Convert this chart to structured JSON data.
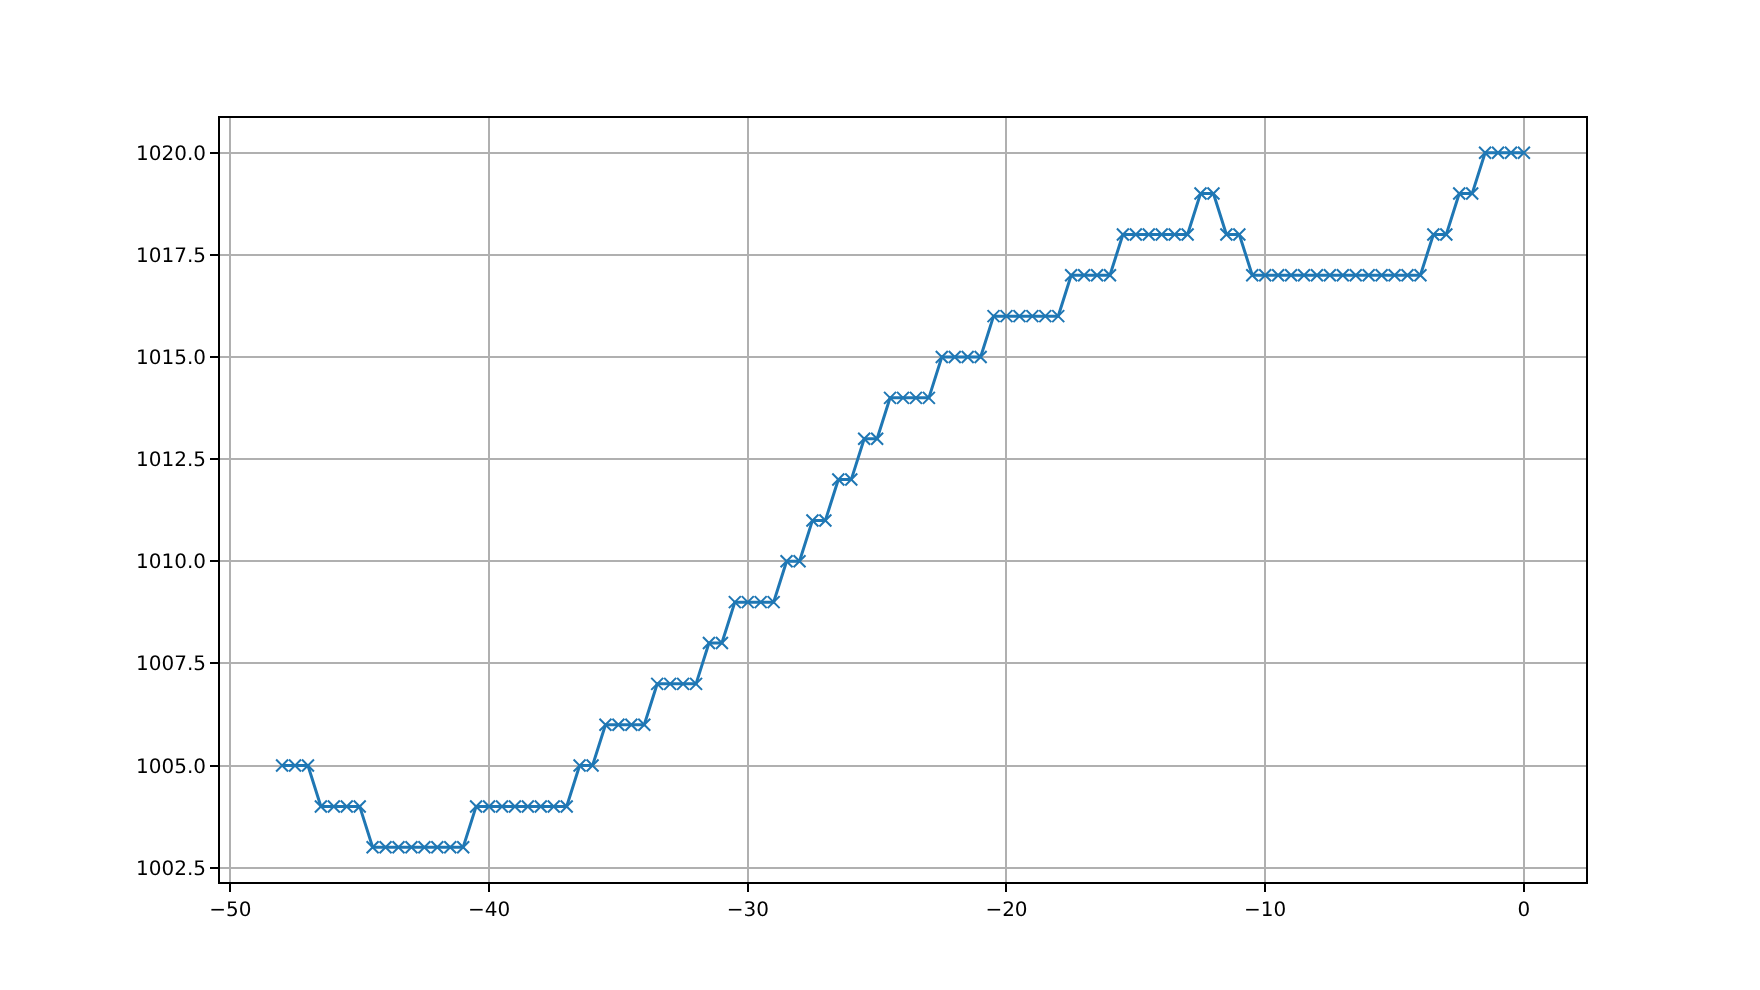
{
  "chart_data": {
    "type": "line",
    "marker": "cross",
    "line_style": "solid",
    "grid": true,
    "x": [
      -48,
      -47.5,
      -47,
      -46.5,
      -46,
      -45.5,
      -45,
      -44.5,
      -44,
      -43.5,
      -43,
      -42.5,
      -42,
      -41.5,
      -41,
      -40.5,
      -40,
      -39.5,
      -39,
      -38.5,
      -38,
      -37.5,
      -37,
      -36.5,
      -36,
      -35.5,
      -35,
      -34.5,
      -34,
      -33.5,
      -33,
      -32.5,
      -32,
      -31.5,
      -31,
      -30.5,
      -30,
      -29.5,
      -29,
      -28.5,
      -28,
      -27.5,
      -27,
      -26.5,
      -26,
      -25.5,
      -25,
      -24.5,
      -24,
      -23.5,
      -23,
      -22.5,
      -22,
      -21.5,
      -21,
      -20.5,
      -20,
      -19.5,
      -19,
      -18.5,
      -18,
      -17.5,
      -17,
      -16.5,
      -16,
      -15.5,
      -15,
      -14.5,
      -14,
      -13.5,
      -13,
      -12.5,
      -12,
      -11.5,
      -11,
      -10.5,
      -10,
      -9.5,
      -9,
      -8.5,
      -8,
      -7.5,
      -7,
      -6.5,
      -6,
      -5.5,
      -5,
      -4.5,
      -4,
      -3.5,
      -3,
      -2.5,
      -2,
      -1.5,
      -1,
      -0.5,
      0
    ],
    "series": [
      {
        "color": "#1f77b4",
        "values": [
          1005,
          1005,
          1005,
          1004,
          1004,
          1004,
          1004,
          1003,
          1003,
          1003,
          1003,
          1003,
          1003,
          1003,
          1003,
          1004,
          1004,
          1004,
          1004,
          1004,
          1004,
          1004,
          1004,
          1005,
          1005,
          1006,
          1006,
          1006,
          1006,
          1007,
          1007,
          1007,
          1007,
          1008,
          1008,
          1009,
          1009,
          1009,
          1009,
          1010,
          1010,
          1011,
          1011,
          1012,
          1012,
          1013,
          1013,
          1014,
          1014,
          1014,
          1014,
          1015,
          1015,
          1015,
          1015,
          1016,
          1016,
          1016,
          1016,
          1016,
          1016,
          1017,
          1017,
          1017,
          1017,
          1018,
          1018,
          1018,
          1018,
          1018,
          1018,
          1019,
          1019,
          1018,
          1018,
          1017,
          1017,
          1017,
          1017,
          1017,
          1017,
          1017,
          1017,
          1017,
          1017,
          1017,
          1017,
          1017,
          1017,
          1018,
          1018,
          1019,
          1019,
          1020,
          1020,
          1020,
          1020
        ]
      }
    ],
    "xlim": [
      -50.4,
      2.4
    ],
    "xticks": [
      -50,
      -40,
      -30,
      -20,
      -10,
      0
    ],
    "ylim": [
      1002.15,
      1020.85
    ],
    "yticks": [
      {
        "value": 1002.5,
        "label": "1002.5"
      },
      {
        "value": 1005,
        "label": "1005.0"
      },
      {
        "value": 1007.5,
        "label": "1007.5"
      },
      {
        "value": 1010,
        "label": "1010.0"
      },
      {
        "value": 1012.5,
        "label": "1012.5"
      },
      {
        "value": 1015,
        "label": "1015.0"
      },
      {
        "value": 1017.5,
        "label": "1017.5"
      },
      {
        "value": 1020,
        "label": "1020.0"
      }
    ]
  }
}
